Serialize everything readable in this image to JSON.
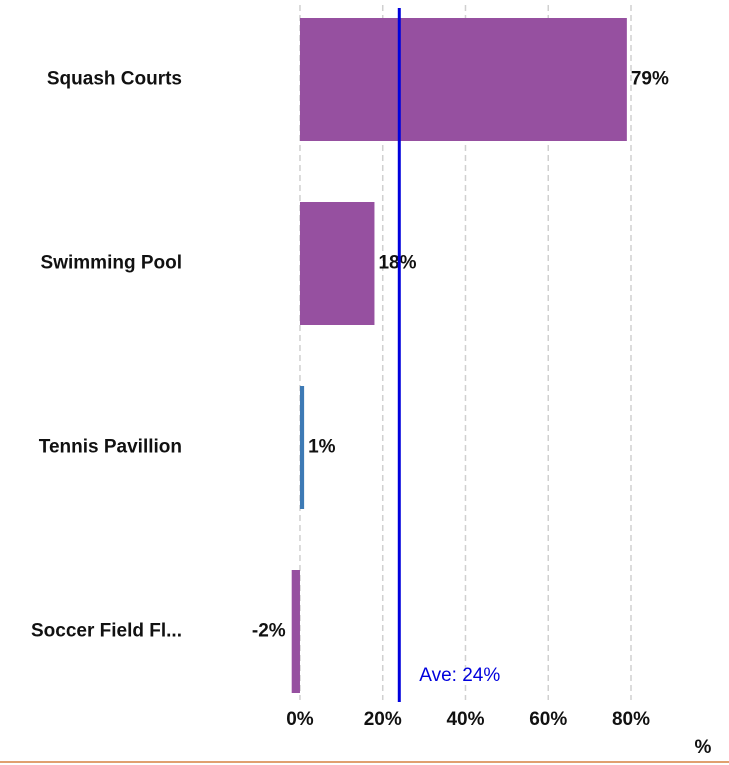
{
  "chart_data": {
    "type": "barh",
    "categories": [
      "Squash Courts",
      "Swimming Pool",
      "Tennis Pavillion",
      "Soccer Field Fl..."
    ],
    "values": [
      79,
      18,
      1,
      -2
    ],
    "value_labels": [
      "79%",
      "18%",
      "1%",
      "-2%"
    ],
    "colors": [
      "#9650a0",
      "#9650a0",
      "#3d7ab5",
      "#9650a0"
    ],
    "xlim": [
      -2,
      80
    ],
    "xticks": [
      {
        "value": 0,
        "label": "0%"
      },
      {
        "value": 20,
        "label": "20%"
      },
      {
        "value": 40,
        "label": "40%"
      },
      {
        "value": 60,
        "label": "60%"
      },
      {
        "value": 80,
        "label": "80%"
      }
    ],
    "x_label": "%",
    "grid": true,
    "average": {
      "value": 24,
      "label": "Ave: 24%",
      "color": "#0000dd"
    }
  }
}
